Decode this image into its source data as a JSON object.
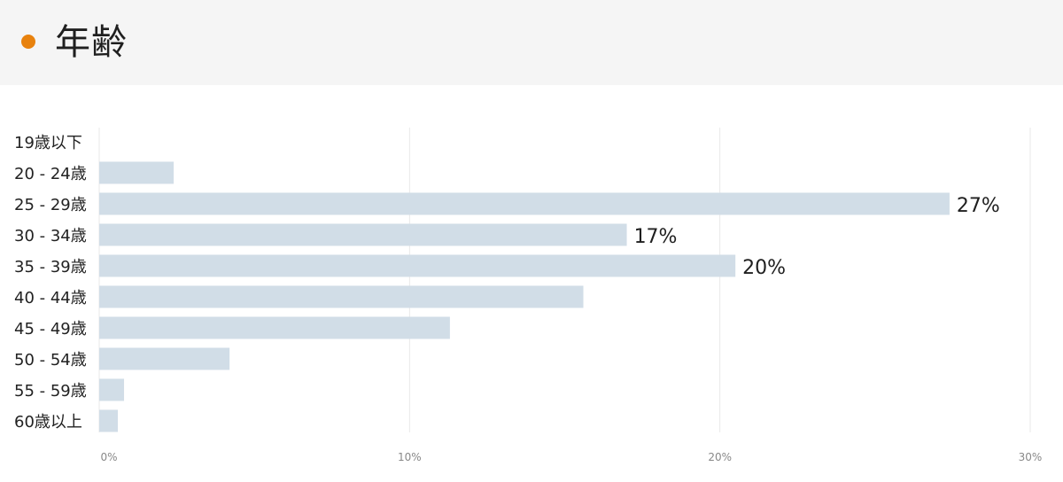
{
  "header": {
    "title": "年齢",
    "accent_color": "#e8820e"
  },
  "chart_data": {
    "type": "bar",
    "orientation": "horizontal",
    "title": "年齢",
    "categories": [
      "19歳以下",
      "20 - 24歳",
      "25 - 29歳",
      "30 - 34歳",
      "35 - 39歳",
      "40 - 44歳",
      "45 - 49歳",
      "50 - 54歳",
      "55 - 59歳",
      "60歳以上"
    ],
    "values": [
      0,
      2.4,
      27.4,
      17.0,
      20.5,
      15.6,
      11.3,
      4.2,
      0.8,
      0.6
    ],
    "data_labels": [
      "",
      "",
      "27%",
      "17%",
      "20%",
      "",
      "",
      "",
      "",
      ""
    ],
    "xlim": [
      0,
      30
    ],
    "x_ticks": [
      0,
      10,
      20,
      30
    ],
    "x_tick_labels": [
      "0%",
      "10%",
      "20%",
      "30%"
    ],
    "xlabel": "",
    "ylabel": "",
    "grid": true,
    "bar_color": "#d1dde7",
    "grid_color": "#e9e9e9"
  }
}
